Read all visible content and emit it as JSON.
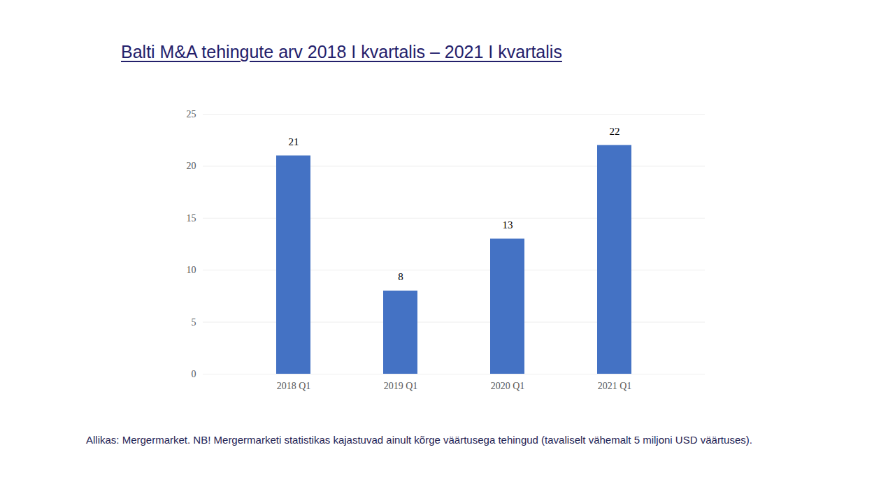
{
  "chart_data": {
    "type": "bar",
    "title": "Balti M&A tehingute arv 2018 I kvartalis – 2021 I kvartalis",
    "categories": [
      "2018 Q1",
      "2019 Q1",
      "2020 Q1",
      "2021 Q1"
    ],
    "values": [
      21,
      8,
      13,
      22
    ],
    "color": "#4472c4",
    "ylim": [
      0,
      25
    ],
    "yticks": [
      0,
      5,
      10,
      15,
      20,
      25
    ],
    "grid": true,
    "data_labels": true,
    "caption": "Allikas: Mergermarket. NB! Mergermarketi statistikas kajastuvad ainult kõrge väärtusega tehingud (tavaliselt vähemalt 5 miljoni USD väärtuses)."
  }
}
